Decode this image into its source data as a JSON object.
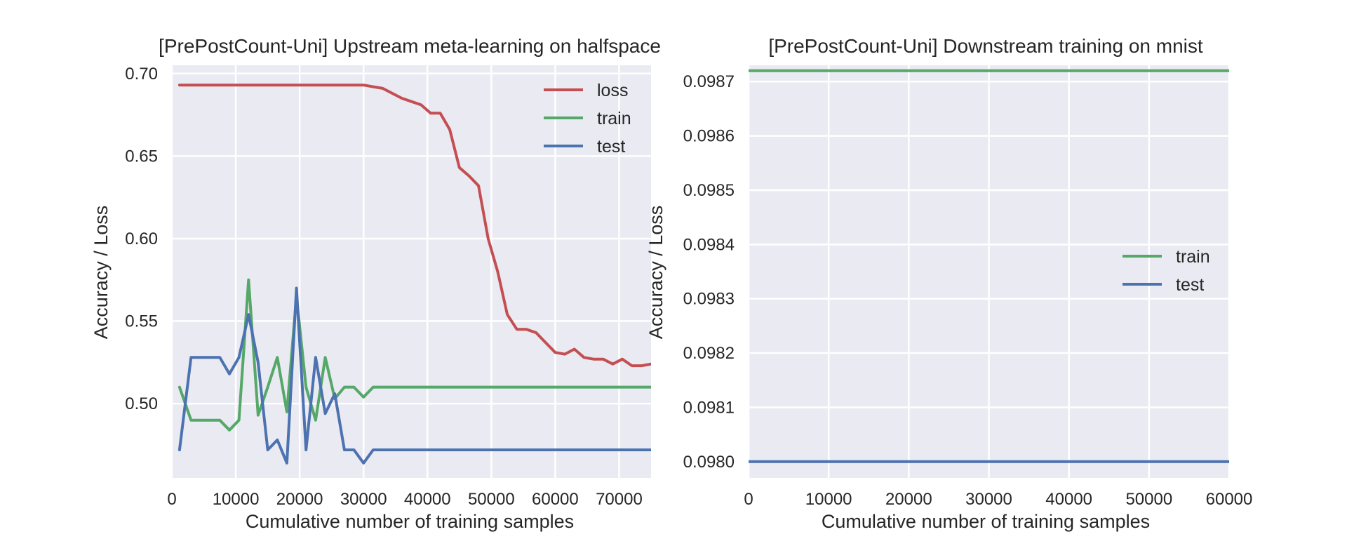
{
  "chart_data": [
    {
      "type": "line",
      "title": "[PrePostCount-Uni] Upstream meta-learning on halfspace",
      "xlabel": "Cumulative number of training samples",
      "ylabel": "Accuracy / Loss",
      "xlim": [
        0,
        75000
      ],
      "ylim": [
        0.455,
        0.705
      ],
      "xticks": [
        0,
        10000,
        20000,
        30000,
        40000,
        50000,
        60000,
        70000
      ],
      "yticks": [
        0.5,
        0.55,
        0.6,
        0.65,
        0.7
      ],
      "xtick_labels": [
        "0",
        "10000",
        "20000",
        "30000",
        "40000",
        "50000",
        "60000",
        "70000"
      ],
      "ytick_labels": [
        "0.50",
        "0.55",
        "0.60",
        "0.65",
        "0.70"
      ],
      "grid": true,
      "legend_position": "top-right",
      "series": [
        {
          "name": "loss",
          "color": "#c44e52",
          "x": [
            1200,
            3000,
            4500,
            6000,
            7500,
            9000,
            10500,
            12000,
            13500,
            15000,
            16500,
            18000,
            19500,
            21000,
            22500,
            24000,
            25500,
            27000,
            28500,
            30000,
            31500,
            33000,
            34500,
            36000,
            37500,
            39000,
            40500,
            42000,
            43500,
            45000,
            46500,
            48000,
            49500,
            51000,
            52500,
            54000,
            55500,
            57000,
            58500,
            60000,
            61500,
            63000,
            64500,
            66000,
            67500,
            69000,
            70500,
            72000,
            73500,
            75000
          ],
          "y": [
            0.693,
            0.693,
            0.693,
            0.693,
            0.693,
            0.693,
            0.693,
            0.693,
            0.693,
            0.693,
            0.693,
            0.693,
            0.693,
            0.693,
            0.693,
            0.693,
            0.693,
            0.693,
            0.693,
            0.693,
            0.692,
            0.691,
            0.688,
            0.685,
            0.683,
            0.681,
            0.676,
            0.676,
            0.666,
            0.643,
            0.638,
            0.632,
            0.6,
            0.58,
            0.554,
            0.545,
            0.545,
            0.543,
            0.537,
            0.531,
            0.53,
            0.533,
            0.528,
            0.527,
            0.527,
            0.524,
            0.527,
            0.523,
            0.523,
            0.524
          ]
        },
        {
          "name": "train",
          "color": "#55a868",
          "x": [
            1200,
            3000,
            4500,
            6000,
            7500,
            9000,
            10500,
            12000,
            13500,
            15000,
            16500,
            18000,
            19500,
            21000,
            22500,
            24000,
            25500,
            27000,
            28500,
            30000,
            31500,
            33000,
            40000,
            50000,
            60000,
            70000,
            75000
          ],
          "y": [
            0.51,
            0.49,
            0.49,
            0.49,
            0.49,
            0.484,
            0.49,
            0.575,
            0.493,
            0.51,
            0.528,
            0.495,
            0.565,
            0.51,
            0.49,
            0.528,
            0.503,
            0.51,
            0.51,
            0.504,
            0.51,
            0.51,
            0.51,
            0.51,
            0.51,
            0.51,
            0.51
          ]
        },
        {
          "name": "test",
          "color": "#4c72b0",
          "x": [
            1200,
            3000,
            4500,
            6000,
            7500,
            9000,
            10500,
            12000,
            13500,
            15000,
            16500,
            18000,
            19500,
            21000,
            22500,
            24000,
            25500,
            27000,
            28500,
            30000,
            31500,
            33000,
            40000,
            50000,
            60000,
            70000,
            75000
          ],
          "y": [
            0.472,
            0.528,
            0.528,
            0.528,
            0.528,
            0.518,
            0.528,
            0.554,
            0.525,
            0.472,
            0.478,
            0.464,
            0.57,
            0.472,
            0.528,
            0.494,
            0.506,
            0.472,
            0.472,
            0.464,
            0.472,
            0.472,
            0.472,
            0.472,
            0.472,
            0.472,
            0.472
          ]
        }
      ]
    },
    {
      "type": "line",
      "title": "[PrePostCount-Uni] Downstream training on mnist",
      "xlabel": "Cumulative number of training samples",
      "ylabel": "Accuracy / Loss",
      "xlim": [
        0,
        60000
      ],
      "ylim": [
        0.09797,
        0.09873
      ],
      "xticks": [
        0,
        10000,
        20000,
        30000,
        40000,
        50000,
        60000
      ],
      "yticks": [
        0.098,
        0.0981,
        0.0982,
        0.0983,
        0.0984,
        0.0985,
        0.0986,
        0.0987
      ],
      "xtick_labels": [
        "0",
        "10000",
        "20000",
        "30000",
        "40000",
        "50000",
        "60000"
      ],
      "ytick_labels": [
        "0.0980",
        "0.0981",
        "0.0982",
        "0.0983",
        "0.0984",
        "0.0985",
        "0.0986",
        "0.0987"
      ],
      "grid": true,
      "legend_position": "center-right",
      "series": [
        {
          "name": "train",
          "color": "#55a868",
          "x": [
            0,
            60000
          ],
          "y": [
            0.09872,
            0.09872
          ]
        },
        {
          "name": "test",
          "color": "#4c72b0",
          "x": [
            0,
            60000
          ],
          "y": [
            0.098,
            0.098
          ]
        }
      ]
    }
  ]
}
